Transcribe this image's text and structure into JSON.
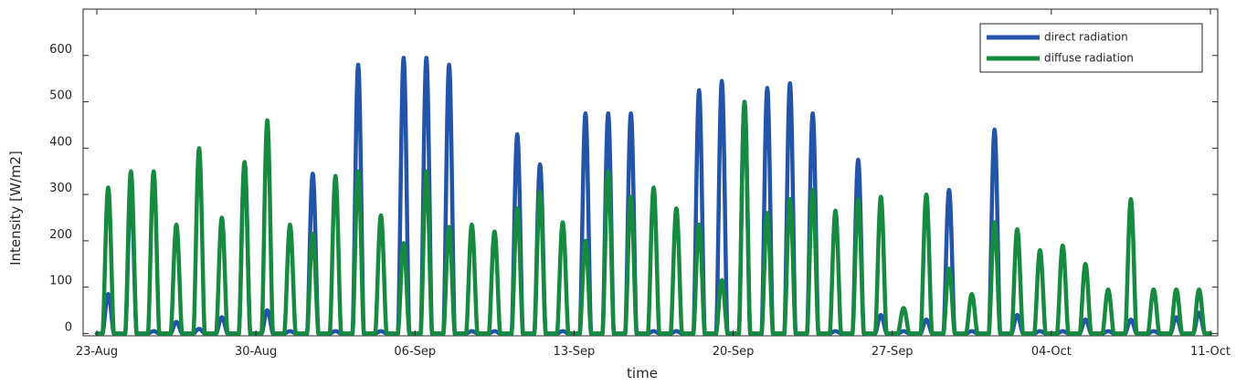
{
  "chart_data": {
    "type": "line",
    "xlabel": "time",
    "ylabel": "Intensity [W/m2]",
    "x_ticks": [
      "23-Aug",
      "30-Aug",
      "06-Sep",
      "13-Sep",
      "20-Sep",
      "27-Sep",
      "04-Oct",
      "11-Oct"
    ],
    "y_ticks": [
      0,
      100,
      200,
      300,
      400,
      500,
      600
    ],
    "xlim": [
      "2019-08-23",
      "2019-10-11"
    ],
    "ylim": [
      -5,
      700
    ],
    "grid": false,
    "legend_position": "top-right",
    "days": [
      "2019-08-23",
      "2019-08-24",
      "2019-08-25",
      "2019-08-26",
      "2019-08-27",
      "2019-08-28",
      "2019-08-29",
      "2019-08-30",
      "2019-08-31",
      "2019-09-01",
      "2019-09-02",
      "2019-09-03",
      "2019-09-04",
      "2019-09-05",
      "2019-09-06",
      "2019-09-07",
      "2019-09-08",
      "2019-09-09",
      "2019-09-10",
      "2019-09-11",
      "2019-09-12",
      "2019-09-13",
      "2019-09-14",
      "2019-09-15",
      "2019-09-16",
      "2019-09-17",
      "2019-09-18",
      "2019-09-19",
      "2019-09-20",
      "2019-09-21",
      "2019-09-22",
      "2019-09-23",
      "2019-09-24",
      "2019-09-25",
      "2019-09-26",
      "2019-09-27",
      "2019-09-28",
      "2019-09-29",
      "2019-09-30",
      "2019-10-01",
      "2019-10-02",
      "2019-10-03",
      "2019-10-04",
      "2019-10-05",
      "2019-10-06",
      "2019-10-07",
      "2019-10-08",
      "2019-10-09",
      "2019-10-10"
    ],
    "series": [
      {
        "name": "direct radiation",
        "color": "#2255AA",
        "daily_peak": [
          85,
          305,
          5,
          25,
          10,
          35,
          370,
          50,
          5,
          345,
          5,
          580,
          5,
          595,
          595,
          580,
          5,
          5,
          430,
          365,
          5,
          475,
          475,
          475,
          5,
          5,
          525,
          545,
          500,
          530,
          540,
          475,
          5,
          375,
          40,
          5,
          30,
          310,
          5,
          440,
          40,
          5,
          5,
          30,
          5,
          30,
          5,
          35,
          45
        ]
      },
      {
        "name": "diffuse radiation",
        "color": "#168A3E",
        "daily_peak": [
          315,
          350,
          350,
          235,
          400,
          250,
          370,
          460,
          235,
          215,
          340,
          350,
          255,
          195,
          350,
          230,
          235,
          220,
          270,
          305,
          240,
          200,
          350,
          295,
          315,
          270,
          235,
          115,
          500,
          260,
          290,
          310,
          265,
          290,
          295,
          55,
          300,
          140,
          85,
          240,
          225,
          180,
          190,
          150,
          95,
          290,
          95,
          95,
          95
        ]
      }
    ]
  }
}
